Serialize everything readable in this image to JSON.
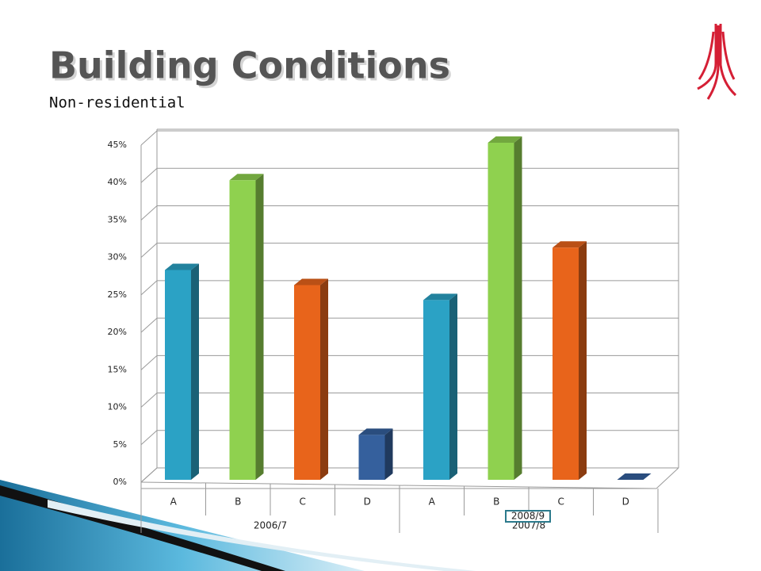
{
  "title": "Building Conditions",
  "subtitle": "Non-residential",
  "chart_data": {
    "type": "bar",
    "categories": [
      "A",
      "B",
      "C",
      "D",
      "A",
      "B",
      "C",
      "D"
    ],
    "groups": [
      "2006/7",
      "2007/8"
    ],
    "annotation": "2008/9",
    "values": [
      28,
      40,
      26,
      6,
      24,
      45,
      31,
      0
    ],
    "colors": [
      "#2ba2c5",
      "#8fd14f",
      "#e8641b",
      "#35609d",
      "#2ba2c5",
      "#8fd14f",
      "#e8641b",
      "#35609d"
    ],
    "ylim": [
      0,
      45
    ],
    "yticks": [
      {
        "value": 0,
        "label": "0%"
      },
      {
        "value": 5,
        "label": "5%"
      },
      {
        "value": 10,
        "label": "10%"
      },
      {
        "value": 15,
        "label": "15%"
      },
      {
        "value": 20,
        "label": "20%"
      },
      {
        "value": 25,
        "label": "25%"
      },
      {
        "value": 30,
        "label": "30%"
      },
      {
        "value": 35,
        "label": "35%"
      },
      {
        "value": 40,
        "label": "40%"
      },
      {
        "value": 45,
        "label": "45%"
      }
    ],
    "grid": true
  }
}
